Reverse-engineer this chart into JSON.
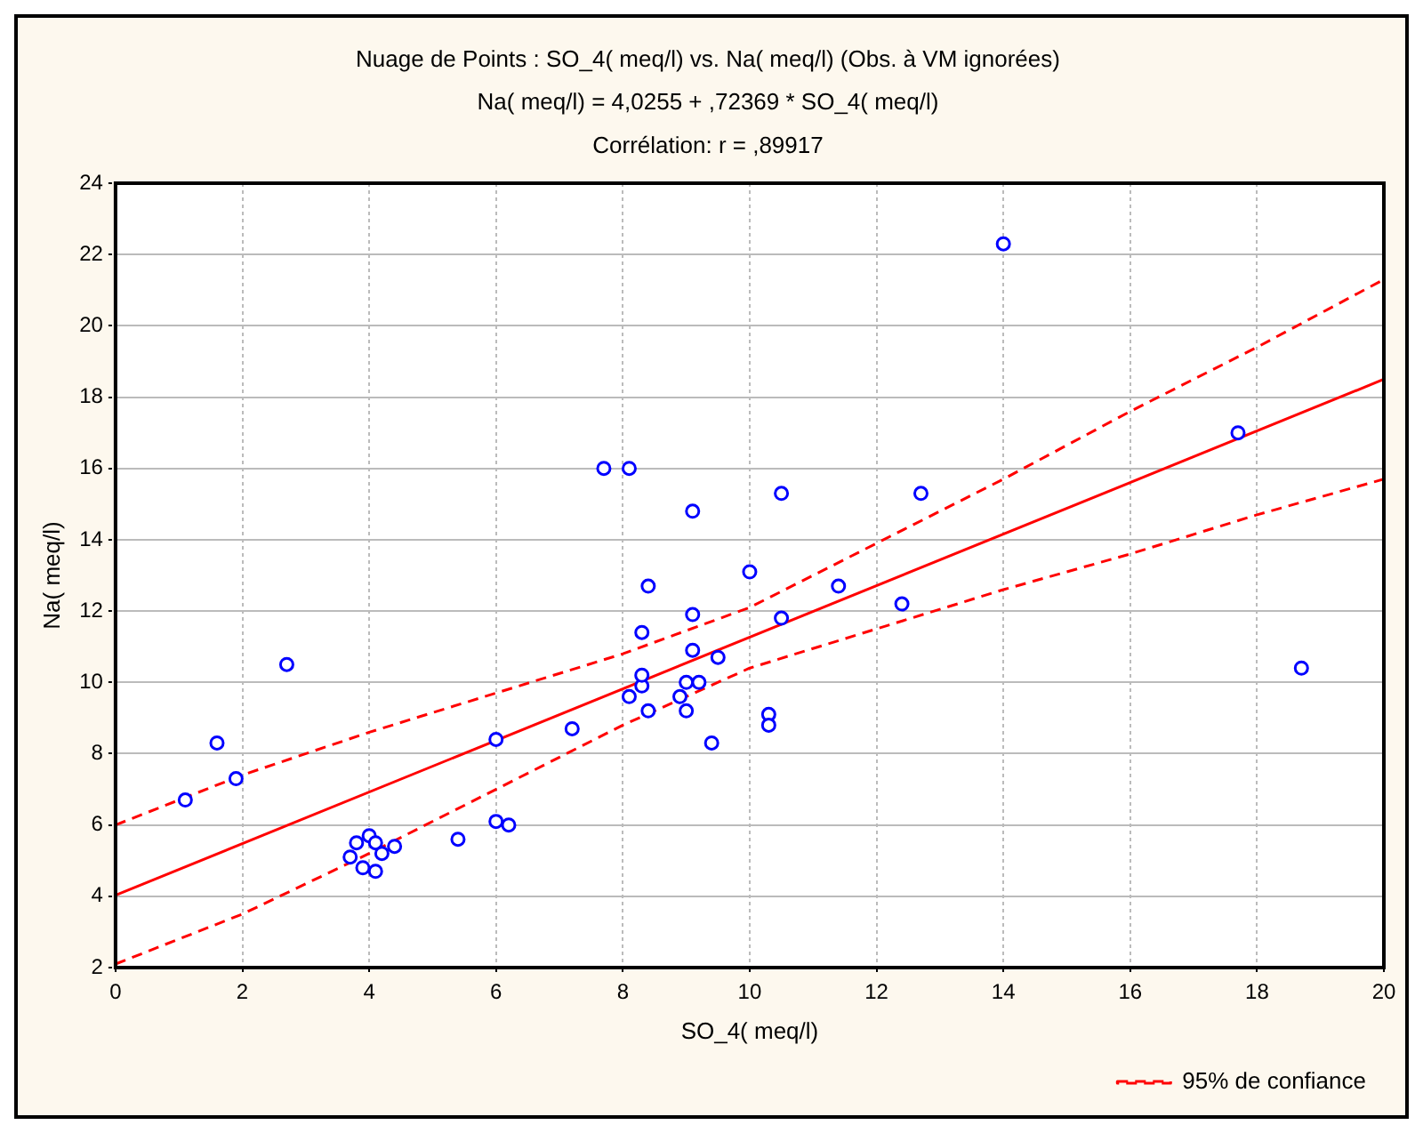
{
  "chart_data": {
    "type": "scatter",
    "title": "Nuage de Points : SO_4( meq/l) vs. Na( meq/l) (Obs. à VM ignorées)",
    "subtitle": "Na( meq/l) = 4,0255 + ,72369 * SO_4( meq/l)",
    "annotations": [
      "Corrélation: r = ,89917"
    ],
    "xlabel": "SO_4( meq/l)",
    "ylabel": "Na( meq/l)",
    "series": [
      {
        "color": "#0000ff",
        "marker": "circle",
        "x": [
          14.0,
          17.7,
          18.7,
          1.1,
          1.6,
          1.9,
          2.7,
          3.7,
          3.8,
          3.9,
          4.0,
          4.1,
          4.1,
          4.2,
          4.4,
          5.4,
          6.0,
          6.0,
          6.2,
          7.2,
          7.7,
          8.1,
          8.1,
          8.3,
          8.3,
          8.3,
          8.4,
          8.4,
          8.9,
          9.0,
          9.0,
          9.1,
          9.1,
          9.1,
          9.2,
          9.4,
          9.5,
          10.0,
          10.3,
          10.3,
          10.5,
          10.5,
          11.4,
          12.4,
          12.7
        ],
        "values": [
          22.3,
          17.0,
          10.4,
          6.7,
          8.3,
          7.3,
          10.5,
          5.1,
          5.5,
          4.8,
          5.7,
          5.5,
          4.7,
          5.2,
          5.4,
          5.6,
          8.4,
          6.1,
          6.0,
          8.7,
          16.0,
          16.0,
          9.6,
          11.4,
          9.9,
          10.2,
          12.7,
          9.2,
          9.6,
          10.0,
          9.2,
          14.8,
          11.9,
          10.9,
          10.0,
          8.3,
          10.7,
          13.1,
          9.1,
          8.8,
          15.3,
          11.8,
          12.7,
          12.2,
          15.3
        ]
      },
      {
        "type": "line",
        "color": "#ff0000",
        "marker": "none",
        "line_style": "solid",
        "x": [
          0,
          20
        ],
        "values": [
          4.03,
          18.5
        ]
      },
      {
        "type": "line",
        "name": "95% de confiance",
        "color": "#ff0000",
        "marker": "none",
        "line_style": "dashed",
        "x": [
          0,
          2,
          4,
          6,
          8,
          10,
          12,
          14,
          16,
          18,
          20
        ],
        "values": [
          6.0,
          7.4,
          8.6,
          9.7,
          10.8,
          12.1,
          13.9,
          15.7,
          17.6,
          19.4,
          21.3
        ]
      },
      {
        "type": "line",
        "color": "#ff0000",
        "marker": "none",
        "line_style": "dashed",
        "x": [
          0,
          2,
          4,
          6,
          8,
          10,
          12,
          14,
          16,
          18,
          20
        ],
        "values": [
          2.1,
          3.5,
          5.2,
          7.0,
          8.8,
          10.4,
          11.5,
          12.6,
          13.6,
          14.7,
          15.7
        ]
      }
    ],
    "xlim": [
      0,
      20
    ],
    "xticks": [
      0,
      2,
      4,
      6,
      8,
      10,
      12,
      14,
      16,
      18,
      20
    ],
    "ylim": [
      2,
      24
    ],
    "yticks": [
      2,
      4,
      6,
      8,
      10,
      12,
      14,
      16,
      18,
      20,
      22,
      24
    ],
    "grid": true,
    "legend": "bottom right"
  }
}
